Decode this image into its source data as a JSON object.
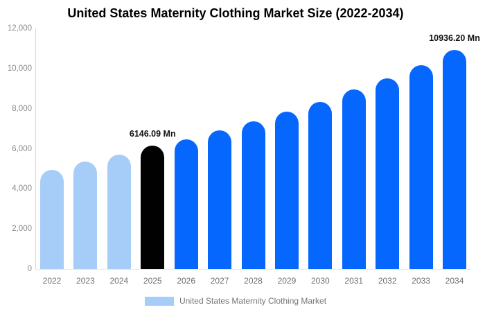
{
  "chart_data": {
    "type": "bar",
    "title": "United States Maternity Clothing Market Size (2022-2034)",
    "categories": [
      "2022",
      "2023",
      "2024",
      "2025",
      "2026",
      "2027",
      "2028",
      "2029",
      "2030",
      "2031",
      "2032",
      "2033",
      "2034"
    ],
    "series": [
      {
        "name": "United States Maternity Clothing Market",
        "values": [
          4950,
          5350,
          5700,
          6146.09,
          6450,
          6900,
          7350,
          7850,
          8350,
          8950,
          9500,
          10150,
          10936.2
        ]
      }
    ],
    "xlabel": "",
    "ylabel": "",
    "ylim": [
      0,
      12000
    ],
    "grid": false,
    "legend_position": "bottom",
    "y_ticks": [
      {
        "value": 0,
        "label": "0"
      },
      {
        "value": 2000,
        "label": "2,000"
      },
      {
        "value": 4000,
        "label": "4,000"
      },
      {
        "value": 6000,
        "label": "6,000"
      },
      {
        "value": 8000,
        "label": "8,000"
      },
      {
        "value": 10000,
        "label": "10,000"
      },
      {
        "value": 12000,
        "label": "12,000"
      }
    ],
    "annotations": [
      {
        "category": "2025",
        "text": "6146.09 Mn"
      },
      {
        "category": "2034",
        "text": "10936.20 Mn"
      }
    ],
    "bar_colors": [
      "#A5CDF8",
      "#A5CDF8",
      "#A5CDF8",
      "#010101",
      "#0667FE",
      "#0667FE",
      "#0667FE",
      "#0667FE",
      "#0667FE",
      "#0667FE",
      "#0667FE",
      "#0667FE",
      "#0667FE"
    ],
    "colors": {
      "historical": "#A5CDF8",
      "base_year": "#010101",
      "forecast": "#0667FE",
      "title_text": "#000000",
      "axis_text": "#7d7d7d",
      "legend_text": "#757575",
      "value_label_text": "#111111",
      "axis_line": "#d8d8d8"
    }
  }
}
